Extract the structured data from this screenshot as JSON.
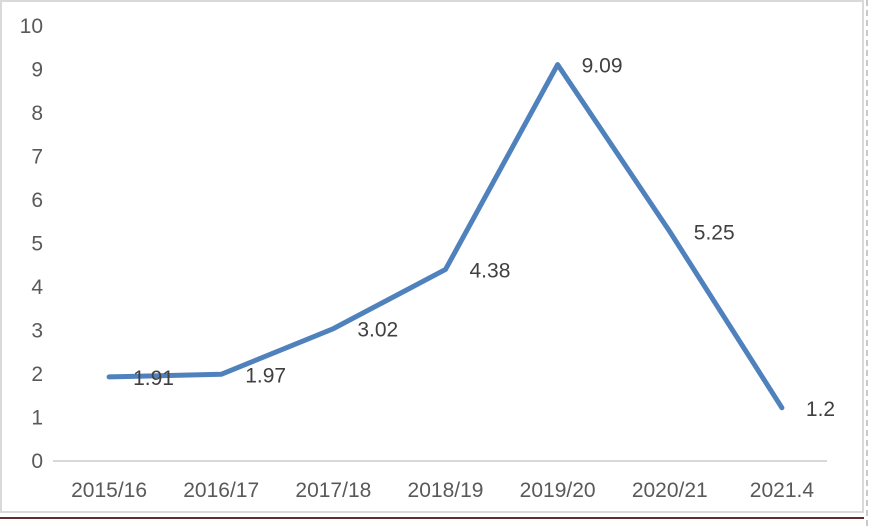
{
  "chart_data": {
    "type": "line",
    "title": "",
    "xlabel": "",
    "ylabel": "",
    "categories": [
      "2015/16",
      "2016/17",
      "2017/18",
      "2018/19",
      "2019/20",
      "2020/21",
      "2021.4"
    ],
    "values": [
      1.91,
      1.97,
      3.02,
      4.38,
      9.09,
      5.25,
      1.2
    ],
    "data_labels": [
      "1.91",
      "1.97",
      "3.02",
      "4.38",
      "9.09",
      "5.25",
      "1.2"
    ],
    "y_ticks": [
      0,
      1,
      2,
      3,
      4,
      5,
      6,
      7,
      8,
      9,
      10
    ],
    "ylim": [
      0,
      10
    ],
    "grid": false,
    "legend": "none"
  },
  "colors": {
    "line": "#4F81BD",
    "axis_text": "#595959",
    "data_label_text": "#404040",
    "axis_line": "#D9D9D9",
    "chart_border": "#D9D9D9",
    "bottom_rule": "#632B2B",
    "page_break_dash": "#C9C9C9",
    "background": "#FFFFFF"
  }
}
